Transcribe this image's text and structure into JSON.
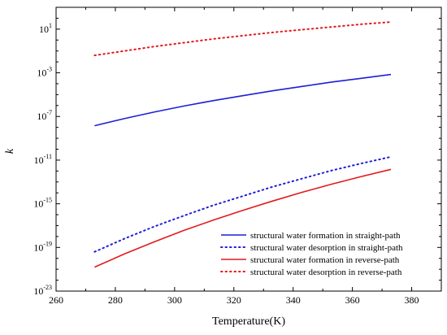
{
  "chart_data": {
    "type": "line",
    "xlabel": "Temperature(K)",
    "ylabel": "k",
    "xlim": [
      260,
      390
    ],
    "x_ticks": [
      260,
      280,
      300,
      320,
      340,
      360,
      380
    ],
    "ylim_log10": [
      -23,
      3
    ],
    "y_scale": "log",
    "y_ticks_log10": [
      -23,
      -19,
      -15,
      -11,
      -7,
      -3,
      1
    ],
    "grid": false,
    "legend_position": "bottom-right",
    "colors": {
      "blue": "#1f1fd6",
      "red": "#e31a1c"
    },
    "series": [
      {
        "name": "structural water formation in straight-path",
        "color": "#1f1fd6",
        "dash": "solid",
        "x": [
          273,
          283,
          293,
          303,
          313,
          323,
          333,
          343,
          353,
          363,
          373
        ],
        "log10_y": [
          -7.85,
          -7.2,
          -6.6,
          -6.05,
          -5.55,
          -5.1,
          -4.65,
          -4.25,
          -3.85,
          -3.5,
          -3.15
        ]
      },
      {
        "name": "structural water desorption in straight-path",
        "color": "#1f1fd6",
        "dash": "dotted",
        "x": [
          273,
          283,
          293,
          303,
          313,
          323,
          333,
          343,
          353,
          363,
          373
        ],
        "log10_y": [
          -19.4,
          -18.2,
          -17.1,
          -16.1,
          -15.15,
          -14.3,
          -13.45,
          -12.7,
          -11.95,
          -11.3,
          -10.7
        ]
      },
      {
        "name": "structural water formation in reverse-path",
        "color": "#e31a1c",
        "dash": "solid",
        "x": [
          273,
          283,
          293,
          303,
          313,
          323,
          333,
          343,
          353,
          363,
          373
        ],
        "log10_y": [
          -20.8,
          -19.6,
          -18.5,
          -17.45,
          -16.5,
          -15.6,
          -14.75,
          -13.95,
          -13.2,
          -12.5,
          -11.85
        ]
      },
      {
        "name": "structural water desorption in reverse-path",
        "color": "#e31a1c",
        "dash": "dotted",
        "x": [
          273,
          283,
          293,
          303,
          313,
          323,
          333,
          343,
          353,
          363,
          373
        ],
        "log10_y": [
          -1.4,
          -1.0,
          -0.6,
          -0.25,
          0.1,
          0.4,
          0.7,
          0.95,
          1.2,
          1.45,
          1.65
        ]
      }
    ]
  }
}
